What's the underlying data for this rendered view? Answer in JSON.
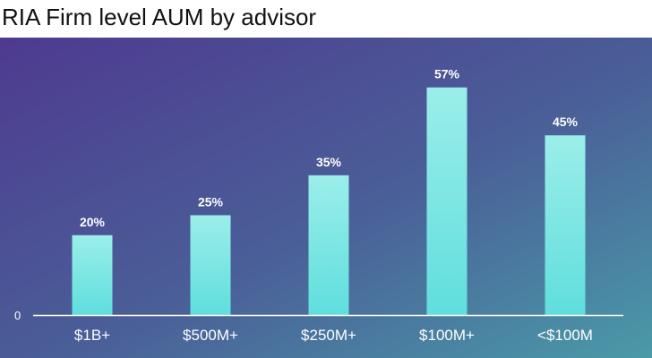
{
  "chart_data": {
    "type": "bar",
    "title": "RIA Firm level AUM by advisor",
    "categories": [
      "$1B+",
      "$500M+",
      "$250M+",
      "$100M+",
      "<$100M"
    ],
    "values": [
      20,
      25,
      35,
      57,
      45
    ],
    "data_labels": [
      "20%",
      "25%",
      "35%",
      "57%",
      "45%"
    ],
    "xlabel": "",
    "ylabel": "",
    "y_tick_labels": [
      "0"
    ],
    "ylim": [
      0,
      65
    ],
    "grid": false,
    "colors": {
      "background_start": "#4e3a90",
      "background_mid": "#4a5f98",
      "background_end": "#4a9aa8",
      "bar_top": "#9beee9",
      "bar_bottom": "#5fdedd",
      "axis": "#ffffff",
      "text": "#ffffff"
    }
  }
}
